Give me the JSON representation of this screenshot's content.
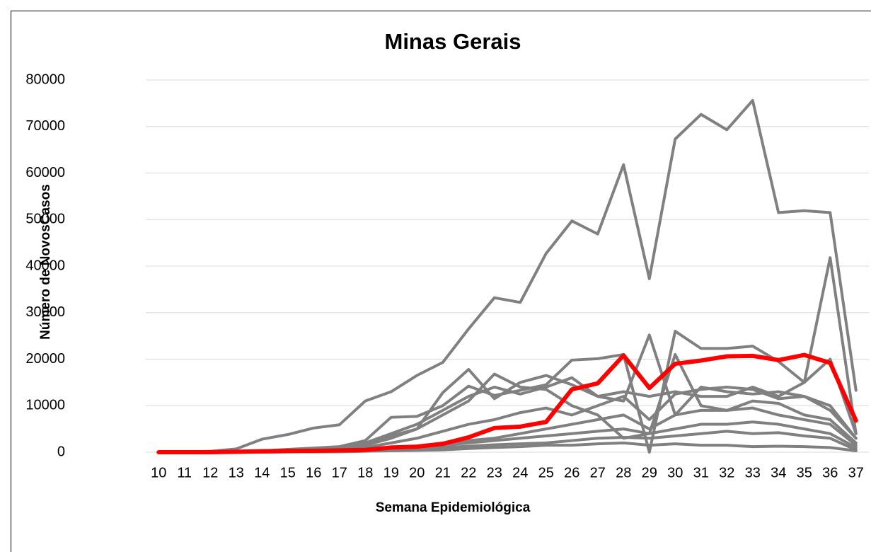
{
  "chart_data": {
    "type": "line",
    "title": "Minas Gerais",
    "x_label": "Semana Epidemiológica",
    "y_label": "Número de NovosCasos",
    "categories": [
      "10",
      "11",
      "12",
      "13",
      "14",
      "15",
      "16",
      "17",
      "18",
      "19",
      "20",
      "21",
      "22",
      "23",
      "24",
      "25",
      "26",
      "27",
      "28",
      "29",
      "30",
      "31",
      "32",
      "33",
      "34",
      "35",
      "36",
      "37"
    ],
    "ylim": [
      0,
      80000
    ],
    "yticks": [
      0,
      10000,
      20000,
      30000,
      40000,
      50000,
      60000,
      70000,
      80000
    ],
    "grid": true,
    "series": [
      {
        "color": "#808080",
        "values": [
          0,
          0,
          200,
          700,
          2800,
          3800,
          5200,
          5900,
          11000,
          13000,
          16500,
          19300,
          26500,
          33200,
          32200,
          42700,
          49700,
          46900,
          61800,
          37300,
          67300,
          72600,
          69300,
          75600,
          51500,
          51900,
          51500,
          13300
        ]
      },
      {
        "color": "#808080",
        "values": [
          0,
          0,
          0,
          100,
          300,
          500,
          800,
          1000,
          2000,
          4000,
          6000,
          9000,
          12000,
          14000,
          12500,
          14000,
          16000,
          12000,
          13000,
          12000,
          13000,
          12000,
          12000,
          14000,
          12000,
          15000,
          41800,
          4000
        ]
      },
      {
        "color": "#808080",
        "values": [
          0,
          0,
          0,
          100,
          300,
          600,
          900,
          1200,
          2500,
          7500,
          7700,
          10000,
          14200,
          12200,
          13300,
          14500,
          19800,
          20100,
          21000,
          0,
          26000,
          22300,
          22300,
          22800,
          19500,
          15000,
          20000,
          4000
        ]
      },
      {
        "color": "#808080",
        "values": [
          0,
          0,
          0,
          50,
          200,
          400,
          700,
          1000,
          2000,
          3500,
          5000,
          12800,
          17800,
          11500,
          15000,
          16500,
          14500,
          12000,
          11000,
          25200,
          8000,
          14000,
          13000,
          12500,
          13000,
          12000,
          9000,
          3000
        ]
      },
      {
        "color": "#808080",
        "values": [
          0,
          0,
          0,
          50,
          100,
          200,
          400,
          600,
          1500,
          3000,
          5000,
          8000,
          11000,
          16800,
          14000,
          13500,
          10000,
          8000,
          3000,
          4000,
          21000,
          10000,
          9000,
          11000,
          10500,
          8000,
          7000,
          2000
        ]
      },
      {
        "color": "#808080",
        "values": [
          0,
          0,
          0,
          0,
          50,
          100,
          200,
          300,
          500,
          800,
          1200,
          2000,
          2500,
          3000,
          4000,
          5000,
          6000,
          7000,
          8000,
          5000,
          8000,
          9000,
          9000,
          9500,
          8000,
          7000,
          6000,
          1500
        ]
      },
      {
        "color": "#808080",
        "values": [
          0,
          0,
          0,
          0,
          50,
          100,
          150,
          200,
          400,
          600,
          900,
          1500,
          2000,
          2500,
          3000,
          3500,
          4000,
          4500,
          5000,
          4000,
          5000,
          6000,
          6000,
          6500,
          6000,
          5000,
          4000,
          1000
        ]
      },
      {
        "color": "#808080",
        "values": [
          0,
          0,
          0,
          0,
          20,
          50,
          100,
          150,
          300,
          400,
          600,
          1000,
          1300,
          1600,
          1800,
          2000,
          2500,
          3000,
          3200,
          3000,
          3500,
          4000,
          4500,
          4000,
          4200,
          3500,
          3000,
          500
        ]
      },
      {
        "color": "#808080",
        "values": [
          0,
          0,
          0,
          0,
          100,
          200,
          300,
          500,
          1000,
          2000,
          3000,
          4500,
          6000,
          7000,
          8500,
          9500,
          8000,
          10000,
          12000,
          7000,
          12500,
          13500,
          14000,
          13500,
          11500,
          12000,
          10000,
          3000
        ]
      },
      {
        "color": "#808080",
        "values": [
          0,
          0,
          0,
          0,
          0,
          50,
          100,
          100,
          200,
          300,
          400,
          500,
          800,
          1000,
          1200,
          1500,
          1500,
          1800,
          2000,
          1500,
          1800,
          1500,
          1500,
          1200,
          1300,
          1200,
          1000,
          300
        ]
      },
      {
        "color": "#ff0000",
        "values": [
          0,
          0,
          0,
          100,
          200,
          300,
          300,
          400,
          500,
          1000,
          1200,
          1800,
          3200,
          5200,
          5500,
          6500,
          13500,
          14800,
          20800,
          13800,
          19000,
          19700,
          20600,
          20700,
          19800,
          20900,
          19200,
          6800
        ]
      }
    ]
  }
}
